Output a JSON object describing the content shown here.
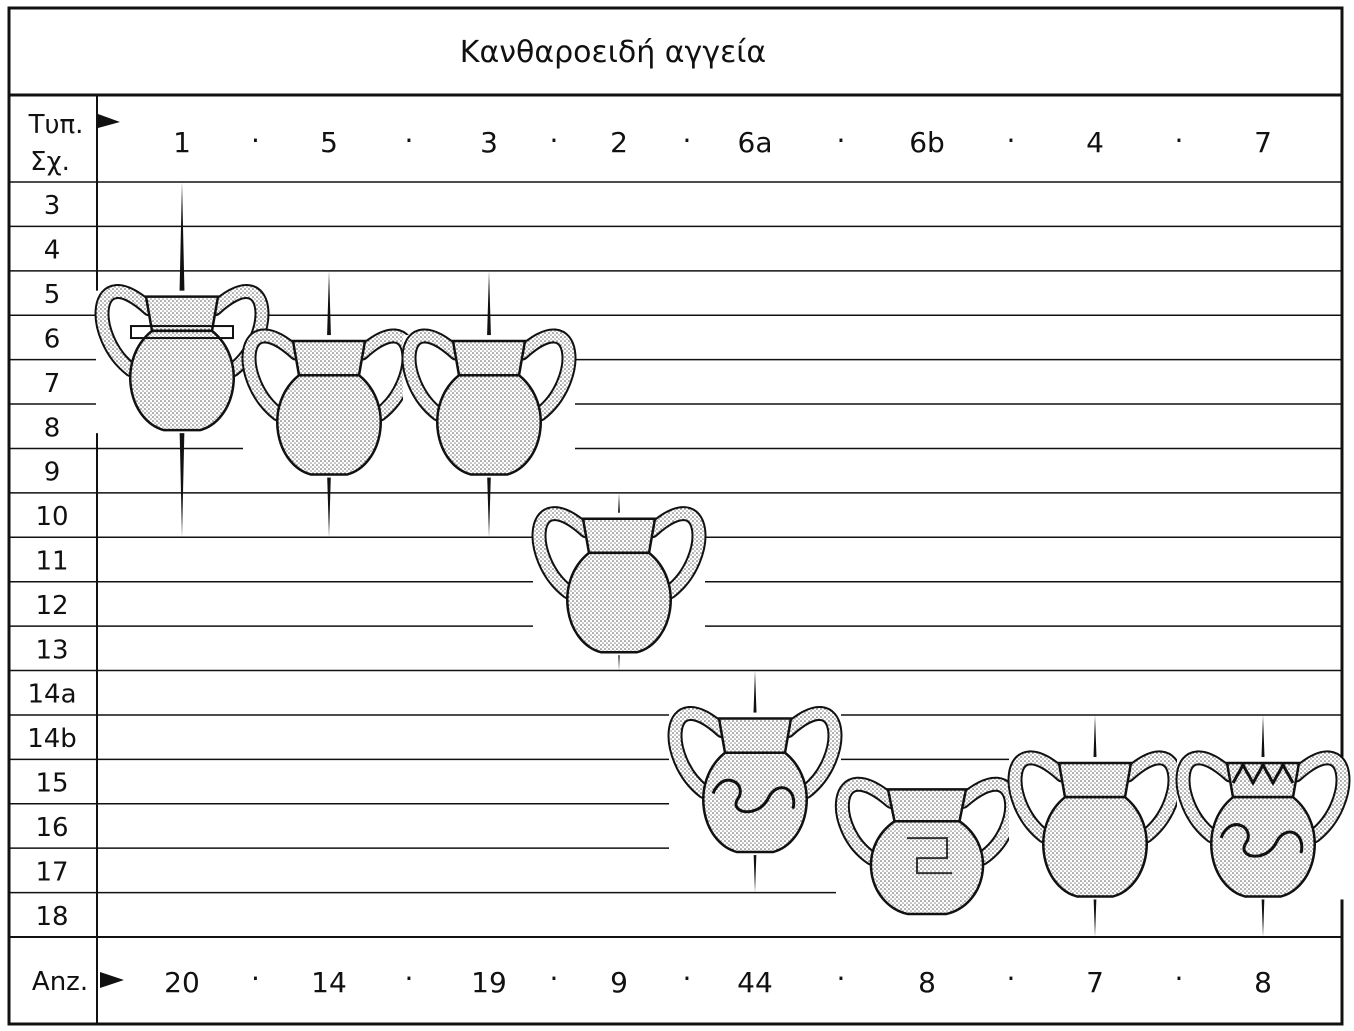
{
  "title": "Κανθαροειδή αγγεία",
  "header": {
    "type_label": "Τυπ.",
    "shape_label": "Σχ.",
    "count_label": "Anz."
  },
  "rows": [
    "3",
    "4",
    "5",
    "6",
    "7",
    "8",
    "9",
    "10",
    "11",
    "12",
    "13",
    "14a",
    "14b",
    "15",
    "16",
    "17",
    "18"
  ],
  "columns": [
    {
      "type": "1",
      "count": "20",
      "from": "3",
      "to": "10",
      "decor": "band"
    },
    {
      "type": "5",
      "count": "14",
      "from": "5",
      "to": "10",
      "decor": "none"
    },
    {
      "type": "3",
      "count": "19",
      "from": "5",
      "to": "10",
      "decor": "none"
    },
    {
      "type": "2",
      "count": "9",
      "from": "10",
      "to": "13",
      "decor": "none"
    },
    {
      "type": "6a",
      "count": "44",
      "from": "14a",
      "to": "17",
      "decor": "spiral"
    },
    {
      "type": "6b",
      "count": "8",
      "from": "16",
      "to": "17",
      "decor": "meander"
    },
    {
      "type": "4",
      "count": "7",
      "from": "14b",
      "to": "18",
      "decor": "none"
    },
    {
      "type": "7",
      "count": "8",
      "from": "14b",
      "to": "18",
      "decor": "wave"
    }
  ],
  "separator": "·",
  "colors": {
    "ink": "#111111",
    "paper": "#ffffff",
    "stipple": "#bdbdbd"
  }
}
